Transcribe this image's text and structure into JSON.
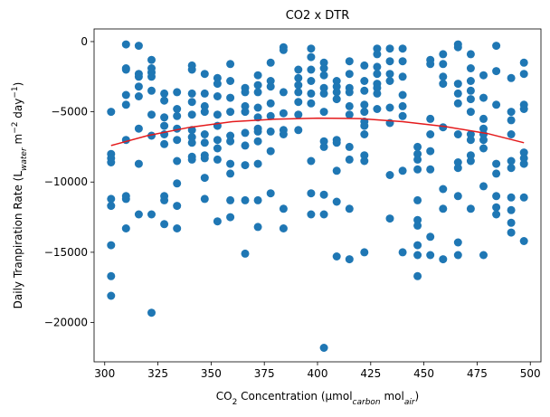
{
  "chart_data": {
    "type": "scatter",
    "title": "CO2 x DTR",
    "xlabel": {
      "pre": "CO",
      "sub1": "2",
      "mid": " Concentration (μmol",
      "sub2": "carbon",
      "mid2": " mol",
      "sub3": "air",
      "post": ")"
    },
    "ylabel": {
      "pre": "Daily Tranpiration Rate (L",
      "sub1": "water",
      "mid": " m",
      "sup1": "−2",
      "mid2": " day",
      "sup2": "−1",
      "post": ")"
    },
    "xlim": [
      295,
      505
    ],
    "ylim": [
      -22800,
      900
    ],
    "xticks": [
      300,
      325,
      350,
      375,
      400,
      425,
      450,
      475,
      500
    ],
    "yticks": [
      0,
      -5000,
      -10000,
      -15000,
      -20000
    ],
    "ytick_labels": [
      "0",
      "−5000",
      "−10000",
      "−15000",
      "−20000"
    ],
    "colors": {
      "points": "#1f77b4",
      "fit": "#e41a1c"
    },
    "points": [
      [
        303,
        -5000
      ],
      [
        303,
        -8000
      ],
      [
        303,
        -8300
      ],
      [
        303,
        -8600
      ],
      [
        303,
        -11200
      ],
      [
        303,
        -11700
      ],
      [
        303,
        -14500
      ],
      [
        303,
        -16700
      ],
      [
        303,
        -18100
      ],
      [
        310,
        -200
      ],
      [
        310,
        -1900
      ],
      [
        310,
        -2000
      ],
      [
        310,
        -3800
      ],
      [
        310,
        -4500
      ],
      [
        310,
        -7000
      ],
      [
        310,
        -11000
      ],
      [
        310,
        -11200
      ],
      [
        310,
        -13300
      ],
      [
        316,
        -300
      ],
      [
        316,
        -2300
      ],
      [
        316,
        -2500
      ],
      [
        316,
        -3200
      ],
      [
        316,
        -3900
      ],
      [
        316,
        -6200
      ],
      [
        316,
        -8700
      ],
      [
        316,
        -12300
      ],
      [
        322,
        -1300
      ],
      [
        322,
        -1900
      ],
      [
        322,
        -2200
      ],
      [
        322,
        -2500
      ],
      [
        322,
        -3500
      ],
      [
        322,
        -5200
      ],
      [
        322,
        -6700
      ],
      [
        322,
        -12300
      ],
      [
        322,
        -19300
      ],
      [
        328,
        -3700
      ],
      [
        328,
        -4200
      ],
      [
        328,
        -5400
      ],
      [
        328,
        -6000
      ],
      [
        328,
        -6600
      ],
      [
        328,
        -7300
      ],
      [
        328,
        -11000
      ],
      [
        328,
        -11300
      ],
      [
        328,
        -13000
      ],
      [
        334,
        -3600
      ],
      [
        334,
        -4800
      ],
      [
        334,
        -5300
      ],
      [
        334,
        -6200
      ],
      [
        334,
        -7000
      ],
      [
        334,
        -8500
      ],
      [
        334,
        -10100
      ],
      [
        334,
        -11700
      ],
      [
        334,
        -13300
      ],
      [
        341,
        -1700
      ],
      [
        341,
        -2000
      ],
      [
        341,
        -3700
      ],
      [
        341,
        -4300
      ],
      [
        341,
        -5200
      ],
      [
        341,
        -6300
      ],
      [
        341,
        -6800
      ],
      [
        341,
        -7200
      ],
      [
        341,
        -8200
      ],
      [
        341,
        -8400
      ],
      [
        347,
        -2300
      ],
      [
        347,
        -3700
      ],
      [
        347,
        -4600
      ],
      [
        347,
        -5000
      ],
      [
        347,
        -6600
      ],
      [
        347,
        -7200
      ],
      [
        347,
        -8100
      ],
      [
        347,
        -8300
      ],
      [
        347,
        -9700
      ],
      [
        347,
        -11200
      ],
      [
        353,
        -2600
      ],
      [
        353,
        -3000
      ],
      [
        353,
        -3900
      ],
      [
        353,
        -5200
      ],
      [
        353,
        -6000
      ],
      [
        353,
        -7000
      ],
      [
        353,
        -7600
      ],
      [
        353,
        -8400
      ],
      [
        353,
        -12800
      ],
      [
        359,
        -1600
      ],
      [
        359,
        -2800
      ],
      [
        359,
        -4000
      ],
      [
        359,
        -5000
      ],
      [
        359,
        -6700
      ],
      [
        359,
        -7100
      ],
      [
        359,
        -8700
      ],
      [
        359,
        -9400
      ],
      [
        359,
        -11300
      ],
      [
        359,
        -12500
      ],
      [
        366,
        -3300
      ],
      [
        366,
        -3600
      ],
      [
        366,
        -4600
      ],
      [
        366,
        -5000
      ],
      [
        366,
        -6500
      ],
      [
        366,
        -7400
      ],
      [
        366,
        -8800
      ],
      [
        366,
        -11300
      ],
      [
        366,
        -15100
      ],
      [
        372,
        -2400
      ],
      [
        372,
        -3100
      ],
      [
        372,
        -3600
      ],
      [
        372,
        -4700
      ],
      [
        372,
        -5400
      ],
      [
        372,
        -6200
      ],
      [
        372,
        -6400
      ],
      [
        372,
        -7100
      ],
      [
        372,
        -8700
      ],
      [
        372,
        -11300
      ],
      [
        372,
        -13200
      ],
      [
        378,
        -1500
      ],
      [
        378,
        -2800
      ],
      [
        378,
        -3200
      ],
      [
        378,
        -4400
      ],
      [
        378,
        -5300
      ],
      [
        378,
        -6400
      ],
      [
        378,
        -7800
      ],
      [
        378,
        -10800
      ],
      [
        384,
        -400
      ],
      [
        384,
        -600
      ],
      [
        384,
        -3600
      ],
      [
        384,
        -5100
      ],
      [
        384,
        -6300
      ],
      [
        384,
        -6600
      ],
      [
        384,
        -11900
      ],
      [
        384,
        -13300
      ],
      [
        391,
        -2000
      ],
      [
        391,
        -2600
      ],
      [
        391,
        -3100
      ],
      [
        391,
        -3600
      ],
      [
        391,
        -4300
      ],
      [
        391,
        -5200
      ],
      [
        391,
        -6300
      ],
      [
        397,
        -500
      ],
      [
        397,
        -1100
      ],
      [
        397,
        -2000
      ],
      [
        397,
        -2800
      ],
      [
        397,
        -3700
      ],
      [
        397,
        -4400
      ],
      [
        397,
        -8500
      ],
      [
        397,
        -10800
      ],
      [
        397,
        -12300
      ],
      [
        403,
        -1500
      ],
      [
        403,
        -1900
      ],
      [
        403,
        -2400
      ],
      [
        403,
        -3300
      ],
      [
        403,
        -3700
      ],
      [
        403,
        -5000
      ],
      [
        403,
        -7100
      ],
      [
        403,
        -7500
      ],
      [
        403,
        -10900
      ],
      [
        403,
        -12300
      ],
      [
        403,
        -21800
      ],
      [
        409,
        -2800
      ],
      [
        409,
        -3200
      ],
      [
        409,
        -3600
      ],
      [
        409,
        -4100
      ],
      [
        409,
        -7000
      ],
      [
        409,
        -7200
      ],
      [
        409,
        -9200
      ],
      [
        409,
        -11400
      ],
      [
        409,
        -15300
      ],
      [
        415,
        -1400
      ],
      [
        415,
        -2300
      ],
      [
        415,
        -3300
      ],
      [
        415,
        -3600
      ],
      [
        415,
        -4600
      ],
      [
        415,
        -5200
      ],
      [
        415,
        -7500
      ],
      [
        415,
        -8400
      ],
      [
        415,
        -11900
      ],
      [
        415,
        -15500
      ],
      [
        422,
        -1700
      ],
      [
        422,
        -2800
      ],
      [
        422,
        -3500
      ],
      [
        422,
        -4500
      ],
      [
        422,
        -5000
      ],
      [
        422,
        -5700
      ],
      [
        422,
        -6000
      ],
      [
        422,
        -6600
      ],
      [
        422,
        -8100
      ],
      [
        422,
        -8500
      ],
      [
        422,
        -15000
      ],
      [
        428,
        -500
      ],
      [
        428,
        -900
      ],
      [
        428,
        -1800
      ],
      [
        428,
        -2300
      ],
      [
        428,
        -3000
      ],
      [
        428,
        -3300
      ],
      [
        428,
        -3700
      ],
      [
        428,
        -4800
      ],
      [
        434,
        -500
      ],
      [
        434,
        -1400
      ],
      [
        434,
        -2300
      ],
      [
        434,
        -2800
      ],
      [
        434,
        -4700
      ],
      [
        434,
        -5800
      ],
      [
        434,
        -9500
      ],
      [
        434,
        -12600
      ],
      [
        440,
        -500
      ],
      [
        440,
        -1400
      ],
      [
        440,
        -2500
      ],
      [
        440,
        -3800
      ],
      [
        440,
        -4600
      ],
      [
        440,
        -5300
      ],
      [
        440,
        -9200
      ],
      [
        440,
        -15000
      ],
      [
        447,
        -7500
      ],
      [
        447,
        -8000
      ],
      [
        447,
        -8400
      ],
      [
        447,
        -9100
      ],
      [
        447,
        -11300
      ],
      [
        447,
        -12700
      ],
      [
        447,
        -13100
      ],
      [
        447,
        -14500
      ],
      [
        447,
        -15200
      ],
      [
        447,
        -16700
      ],
      [
        453,
        -1300
      ],
      [
        453,
        -1600
      ],
      [
        453,
        -5500
      ],
      [
        453,
        -6600
      ],
      [
        453,
        -7800
      ],
      [
        453,
        -9100
      ],
      [
        453,
        -13900
      ],
      [
        453,
        -15200
      ],
      [
        459,
        -900
      ],
      [
        459,
        -1600
      ],
      [
        459,
        -2500
      ],
      [
        459,
        -3000
      ],
      [
        459,
        -6100
      ],
      [
        459,
        -10500
      ],
      [
        459,
        -11900
      ],
      [
        459,
        -15500
      ],
      [
        466,
        -200
      ],
      [
        466,
        -400
      ],
      [
        466,
        -3000
      ],
      [
        466,
        -3700
      ],
      [
        466,
        -4400
      ],
      [
        466,
        -6600
      ],
      [
        466,
        -8600
      ],
      [
        466,
        -9000
      ],
      [
        466,
        -11000
      ],
      [
        466,
        -14300
      ],
      [
        466,
        -15200
      ],
      [
        472,
        -900
      ],
      [
        472,
        -1900
      ],
      [
        472,
        -2800
      ],
      [
        472,
        -3500
      ],
      [
        472,
        -4100
      ],
      [
        472,
        -5000
      ],
      [
        472,
        -6600
      ],
      [
        472,
        -7000
      ],
      [
        472,
        -8100
      ],
      [
        472,
        -8500
      ],
      [
        472,
        -11900
      ],
      [
        478,
        -2400
      ],
      [
        478,
        -4000
      ],
      [
        478,
        -5500
      ],
      [
        478,
        -6200
      ],
      [
        478,
        -6600
      ],
      [
        478,
        -7000
      ],
      [
        478,
        -7600
      ],
      [
        478,
        -10300
      ],
      [
        478,
        -15200
      ],
      [
        484,
        -300
      ],
      [
        484,
        -2100
      ],
      [
        484,
        -4500
      ],
      [
        484,
        -8700
      ],
      [
        484,
        -9400
      ],
      [
        484,
        -11000
      ],
      [
        484,
        -11800
      ],
      [
        484,
        -12300
      ],
      [
        491,
        -2600
      ],
      [
        491,
        -5000
      ],
      [
        491,
        -5600
      ],
      [
        491,
        -6600
      ],
      [
        491,
        -8500
      ],
      [
        491,
        -9000
      ],
      [
        491,
        -11100
      ],
      [
        491,
        -12000
      ],
      [
        491,
        -12900
      ],
      [
        491,
        -13600
      ],
      [
        497,
        -1500
      ],
      [
        497,
        -2300
      ],
      [
        497,
        -4500
      ],
      [
        497,
        -4800
      ],
      [
        497,
        -7900
      ],
      [
        497,
        -8300
      ],
      [
        497,
        -8700
      ],
      [
        497,
        -11100
      ],
      [
        497,
        -14200
      ]
    ],
    "fit_curve": [
      [
        303,
        -7400
      ],
      [
        320,
        -6700
      ],
      [
        340,
        -6100
      ],
      [
        360,
        -5700
      ],
      [
        380,
        -5520
      ],
      [
        400,
        -5450
      ],
      [
        420,
        -5480
      ],
      [
        440,
        -5700
      ],
      [
        460,
        -6050
      ],
      [
        480,
        -6550
      ],
      [
        497,
        -7200
      ]
    ]
  }
}
